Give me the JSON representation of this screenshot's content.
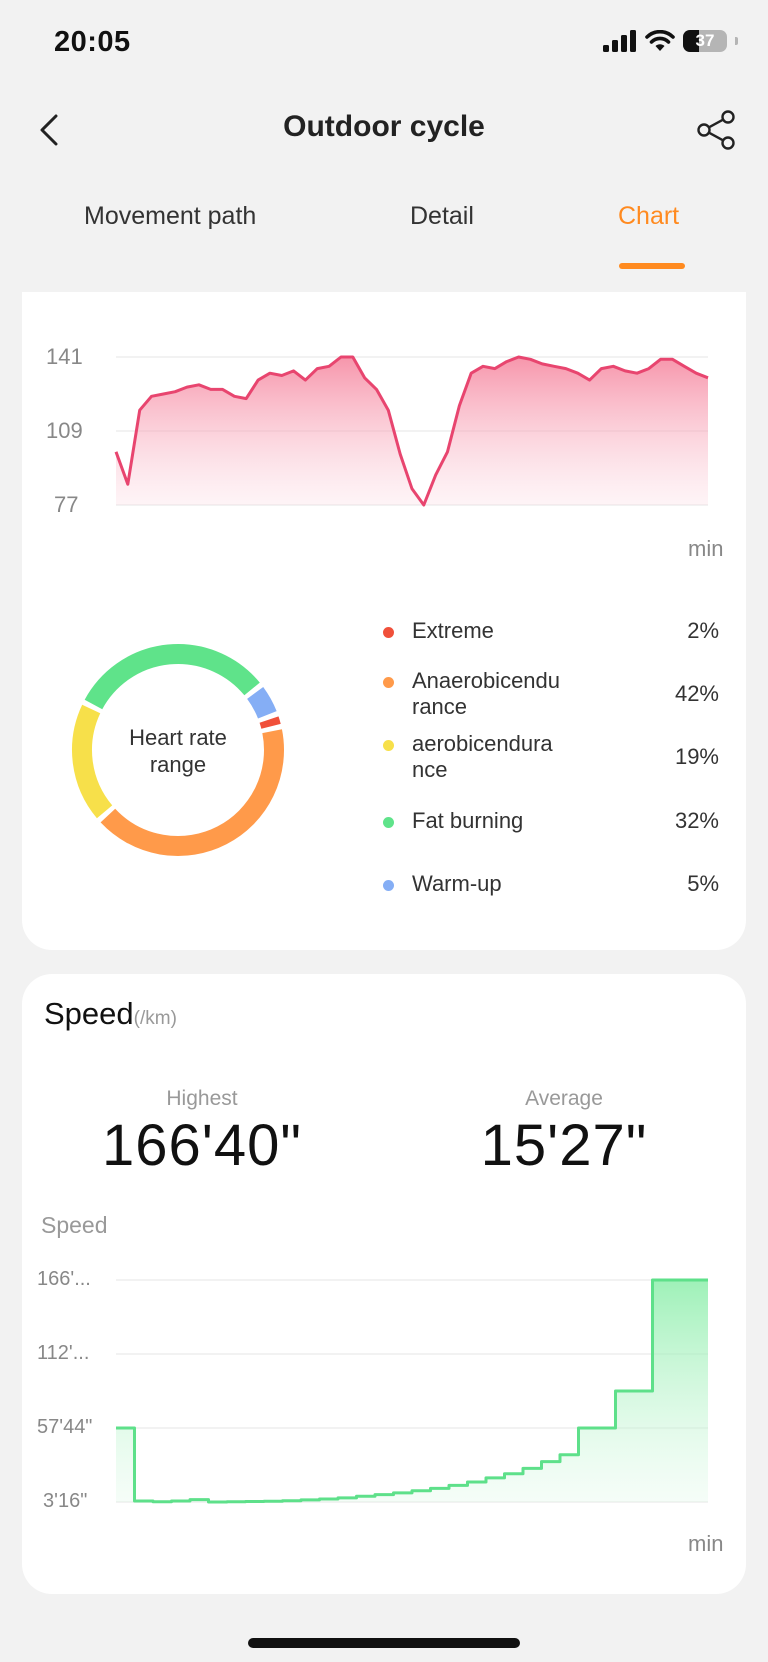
{
  "status_bar": {
    "time": "20:05",
    "battery": "37",
    "battery_level": 0.37
  },
  "header": {
    "title": "Outdoor cycle",
    "back_icon": "chevron-left-icon",
    "share_icon": "share-icon"
  },
  "tabs": [
    {
      "label": "Movement path",
      "active": false
    },
    {
      "label": "Detail",
      "active": false
    },
    {
      "label": "Chart",
      "active": true
    }
  ],
  "colors": {
    "accent": "#ff8a1f",
    "heart_line": "#e8456f",
    "speed_line": "#5ee08a"
  },
  "heart_rate": {
    "y_ticks": [
      "141",
      "109",
      "77"
    ],
    "x_unit": "min",
    "chart_data": {
      "type": "area",
      "ylim": [
        77,
        141
      ],
      "y": [
        100,
        86,
        118,
        124,
        125,
        126,
        128,
        129,
        127,
        127,
        124,
        123,
        131,
        134,
        133,
        135,
        131,
        136,
        137,
        141,
        141,
        132,
        127,
        118,
        99,
        84,
        77,
        90,
        100,
        120,
        134,
        137,
        136,
        139,
        141,
        140,
        138,
        137,
        136,
        134,
        131,
        136,
        137,
        135,
        134,
        136,
        140,
        140,
        137,
        134,
        132
      ]
    },
    "range": {
      "center_label": "Heart rate range",
      "chart_data": {
        "type": "pie",
        "slices": [
          {
            "name": "Extreme",
            "value": 2,
            "pct": "2%",
            "color": "#f0503a"
          },
          {
            "name": "Anaerobicendurance",
            "value": 42,
            "pct": "42%",
            "color": "#ff9a4a"
          },
          {
            "name": "aerobicendurance",
            "value": 19,
            "pct": "19%",
            "color": "#f7e04a"
          },
          {
            "name": "Fat burning",
            "value": 32,
            "pct": "32%",
            "color": "#5fe38a"
          },
          {
            "name": "Warm-up",
            "value": 5,
            "pct": "5%",
            "color": "#85aef5"
          }
        ]
      },
      "legend": [
        {
          "name": "Extreme",
          "pct": "2%",
          "color": "#f0503a"
        },
        {
          "name": "Anaerobicendurance",
          "pct": "42%",
          "color": "#ff9a4a"
        },
        {
          "name": "aerobicendurance",
          "pct": "19%",
          "color": "#f7e04a"
        },
        {
          "name": "Fat burning",
          "pct": "32%",
          "color": "#5fe38a"
        },
        {
          "name": "Warm-up",
          "pct": "5%",
          "color": "#85aef5"
        }
      ]
    }
  },
  "speed": {
    "title": "Speed",
    "unit": "(/km)",
    "highest_label": "Highest",
    "highest_value": "166'40\"",
    "average_label": "Average",
    "average_value": "15'27\"",
    "chart_title": "Speed",
    "y_ticks": [
      "166'...",
      "112'...",
      "57'44\"",
      "3'16\""
    ],
    "x_unit": "min",
    "chart_data": {
      "type": "area",
      "ylabel": "Speed",
      "y_min_per_km": [
        57.7,
        4,
        3.5,
        4,
        5,
        3.3,
        3.4,
        3.6,
        3.8,
        4.2,
        4.8,
        5.5,
        6.3,
        7.5,
        8.7,
        10,
        11.6,
        13.3,
        15.5,
        18,
        21,
        24,
        28,
        33,
        38,
        57.7,
        57.7,
        85,
        85,
        166.7,
        166.7,
        166.7
      ]
    }
  }
}
